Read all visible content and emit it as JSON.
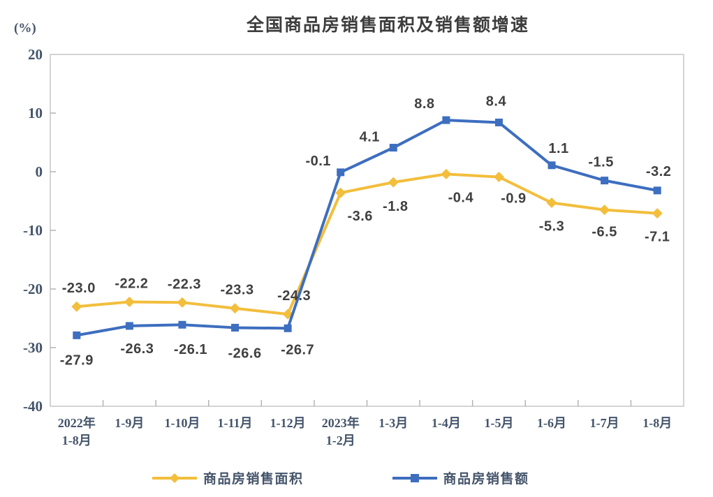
{
  "chart_data": {
    "type": "line",
    "title": "全国商品房销售面积及销售额增速",
    "unit_label": "(%)",
    "categories": [
      [
        "2022年",
        "1-8月"
      ],
      [
        "1-9月"
      ],
      [
        "1-10月"
      ],
      [
        "1-11月"
      ],
      [
        "1-12月"
      ],
      [
        "2023年",
        "1-2月"
      ],
      [
        "1-3月"
      ],
      [
        "1-4月"
      ],
      [
        "1-5月"
      ],
      [
        "1-6月"
      ],
      [
        "1-7月"
      ],
      [
        "1-8月"
      ]
    ],
    "series": [
      {
        "name": "商品房销售面积",
        "marker": "diamond",
        "color": "#F2BE3C",
        "values": [
          -23.0,
          -22.2,
          -22.3,
          -23.3,
          -24.3,
          -3.6,
          -1.8,
          -0.4,
          -0.9,
          -5.3,
          -6.5,
          -7.1
        ]
      },
      {
        "name": "商品房销售额",
        "marker": "square",
        "color": "#3D6EBF",
        "values": [
          -27.9,
          -26.3,
          -26.1,
          -26.6,
          -26.7,
          -0.1,
          4.1,
          8.8,
          8.4,
          1.1,
          -1.5,
          -3.2
        ]
      }
    ],
    "y_axis": {
      "min": -40,
      "max": 20,
      "step": 10,
      "tick_labels": [
        "20",
        "10",
        "0",
        "-10",
        "-20",
        "-30",
        "-40"
      ]
    },
    "grid": "off",
    "legend_position": "bottom",
    "colors": {
      "data_label": "#404040",
      "axis_text": "#44546A",
      "plot_border": "#C6C6C6",
      "tick": "#B3B3B3"
    }
  }
}
